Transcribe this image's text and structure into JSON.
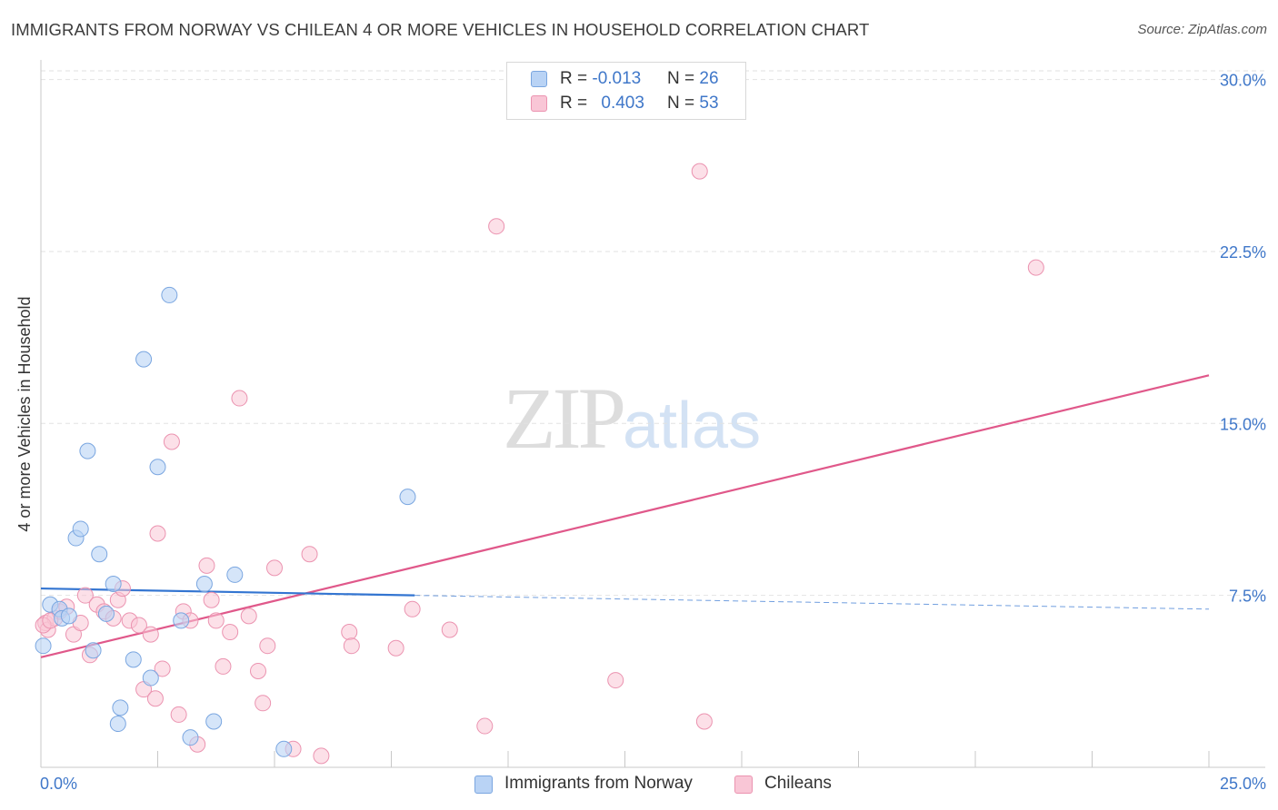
{
  "header": {
    "title": "IMMIGRANTS FROM NORWAY VS CHILEAN 4 OR MORE VEHICLES IN HOUSEHOLD CORRELATION CHART",
    "source": "Source: ZipAtlas.com"
  },
  "watermark": {
    "zip": "ZIP",
    "atlas": "atlas"
  },
  "legend": {
    "rows": [
      {
        "r_label": "R = ",
        "r_value": "-0.013",
        "n_label": "N = ",
        "n_value": "26"
      },
      {
        "r_label": "R = ",
        "r_value": "0.403",
        "n_label": "N = ",
        "n_value": "53"
      }
    ]
  },
  "bottom_legend": {
    "series0": "Immigrants from Norway",
    "series1": "Chileans"
  },
  "chart_data": {
    "type": "scatter",
    "title": "IMMIGRANTS FROM NORWAY VS CHILEAN 4 OR MORE VEHICLES IN HOUSEHOLD CORRELATION CHART",
    "xlabel": "",
    "ylabel": "4 or more Vehicles in Household",
    "xlim": [
      0,
      25
    ],
    "ylim": [
      0,
      30.5
    ],
    "x_tick_labels": [
      "0.0%",
      "25.0%"
    ],
    "y_ticks": [
      7.5,
      15.0,
      22.5,
      30.0
    ],
    "y_tick_labels": [
      "7.5%",
      "15.0%",
      "22.5%",
      "30.0%"
    ],
    "grid": "horizontal dashed",
    "legend_position": "top-center",
    "colors": {
      "series0_fill": "#b9d3f5",
      "series0_stroke": "#7aa6e0",
      "series0_line": "#3375d1",
      "series1_fill": "#f9c6d6",
      "series1_stroke": "#eb93b0",
      "series1_line": "#e0588a",
      "tick_label": "#3f77c9"
    },
    "series": [
      {
        "name": "Immigrants from Norway",
        "points": [
          [
            0.05,
            5.3
          ],
          [
            0.2,
            7.1
          ],
          [
            0.4,
            6.9
          ],
          [
            0.45,
            6.5
          ],
          [
            0.6,
            6.6
          ],
          [
            0.75,
            10.0
          ],
          [
            0.85,
            10.4
          ],
          [
            1.0,
            13.8
          ],
          [
            1.12,
            5.1
          ],
          [
            1.25,
            9.3
          ],
          [
            1.4,
            6.7
          ],
          [
            1.55,
            8.0
          ],
          [
            1.7,
            2.6
          ],
          [
            1.65,
            1.9
          ],
          [
            1.98,
            4.7
          ],
          [
            2.2,
            17.8
          ],
          [
            2.35,
            3.9
          ],
          [
            2.5,
            13.1
          ],
          [
            2.75,
            20.6
          ],
          [
            3.0,
            6.4
          ],
          [
            3.2,
            1.3
          ],
          [
            3.5,
            8.0
          ],
          [
            3.7,
            2.0
          ],
          [
            4.15,
            8.4
          ],
          [
            5.2,
            0.8
          ],
          [
            7.85,
            11.8
          ]
        ],
        "trend_solid": [
          [
            0.0,
            7.8
          ],
          [
            8.0,
            7.5
          ]
        ],
        "trend_dashed": [
          [
            8.0,
            7.5
          ],
          [
            25.0,
            6.9
          ]
        ]
      },
      {
        "name": "Chileans",
        "points": [
          [
            0.1,
            6.3
          ],
          [
            0.15,
            6.0
          ],
          [
            0.3,
            6.5
          ],
          [
            0.4,
            6.8
          ],
          [
            0.55,
            7.0
          ],
          [
            0.7,
            5.8
          ],
          [
            0.85,
            6.3
          ],
          [
            0.95,
            7.5
          ],
          [
            1.05,
            4.9
          ],
          [
            1.2,
            7.1
          ],
          [
            1.35,
            6.8
          ],
          [
            1.55,
            6.5
          ],
          [
            1.65,
            7.3
          ],
          [
            1.75,
            7.8
          ],
          [
            1.9,
            6.4
          ],
          [
            2.1,
            6.2
          ],
          [
            2.2,
            3.4
          ],
          [
            2.35,
            5.8
          ],
          [
            2.45,
            3.0
          ],
          [
            2.5,
            10.2
          ],
          [
            2.6,
            4.3
          ],
          [
            2.8,
            14.2
          ],
          [
            2.95,
            2.3
          ],
          [
            3.05,
            6.8
          ],
          [
            3.2,
            6.4
          ],
          [
            3.35,
            1.0
          ],
          [
            3.55,
            8.8
          ],
          [
            3.65,
            7.3
          ],
          [
            3.75,
            6.4
          ],
          [
            3.9,
            4.4
          ],
          [
            4.05,
            5.9
          ],
          [
            4.25,
            16.1
          ],
          [
            4.45,
            6.6
          ],
          [
            4.65,
            4.2
          ],
          [
            4.75,
            2.8
          ],
          [
            4.85,
            5.3
          ],
          [
            5.0,
            8.7
          ],
          [
            5.4,
            0.8
          ],
          [
            5.75,
            9.3
          ],
          [
            6.0,
            0.5
          ],
          [
            6.6,
            5.9
          ],
          [
            6.65,
            5.3
          ],
          [
            7.6,
            5.2
          ],
          [
            7.95,
            6.9
          ],
          [
            8.75,
            6.0
          ],
          [
            9.5,
            1.8
          ],
          [
            9.75,
            23.6
          ],
          [
            12.3,
            3.8
          ],
          [
            14.1,
            26.0
          ],
          [
            14.2,
            2.0
          ],
          [
            21.3,
            21.8
          ],
          [
            0.05,
            6.2
          ],
          [
            0.2,
            6.4
          ]
        ],
        "trend_solid": [
          [
            0.0,
            4.8
          ],
          [
            25.0,
            17.1
          ]
        ]
      }
    ]
  }
}
